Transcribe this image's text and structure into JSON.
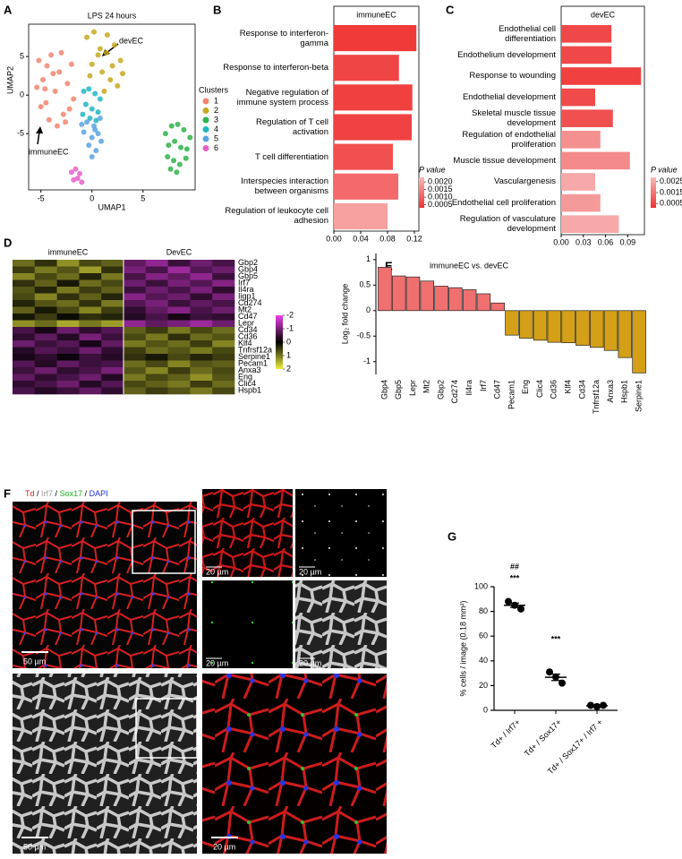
{
  "panel_labels": [
    "A",
    "B",
    "C",
    "D",
    "E",
    "F",
    "G"
  ],
  "chart_data": [
    {
      "type": "scatter",
      "title": "LPS 24 hours",
      "x_label": "UMAP1",
      "y_label": "UMAP2",
      "xlim": [
        -6.2,
        10.1
      ],
      "ylim": [
        -12.3,
        9.2
      ],
      "xticks": [
        -5,
        0,
        5
      ],
      "yticks": [
        5,
        0,
        -5
      ],
      "legend_title": "Clusters",
      "legend_position": "right",
      "annotations": [
        "devEC",
        "immuneEC"
      ],
      "series": [
        {
          "name": "1",
          "color": "#f4846f",
          "x": [
            -5.2,
            -4.8,
            -4.5,
            -4.0,
            -3.6,
            -3.2,
            -2.8,
            -2.4,
            -2.0,
            -5.0,
            -4.2,
            -3.4,
            -2.6,
            -1.8,
            -4.6,
            -3.8,
            -3.0,
            -2.2,
            -5.4,
            -4.4
          ],
          "y": [
            4.5,
            2.0,
            -1.0,
            5.2,
            0.5,
            3.0,
            -2.5,
            1.5,
            4.0,
            -1.5,
            -3.2,
            -4.0,
            -3.5,
            -0.5,
            0.8,
            2.8,
            5.5,
            -1.8,
            1.0,
            3.8
          ]
        },
        {
          "name": "2",
          "color": "#c8a820",
          "x": [
            -0.5,
            0.2,
            0.8,
            1.5,
            2.2,
            2.8,
            0.0,
            1.0,
            1.8,
            2.5,
            -0.2,
            0.6,
            1.4,
            2.0,
            3.0,
            1.2
          ],
          "y": [
            7.5,
            8.2,
            6.0,
            7.8,
            6.5,
            4.5,
            4.0,
            3.0,
            2.0,
            1.2,
            2.5,
            5.2,
            5.5,
            3.8,
            2.8,
            0.5
          ]
        },
        {
          "name": "3",
          "color": "#2fb34a",
          "x": [
            7.2,
            7.8,
            8.4,
            9.0,
            9.6,
            7.5,
            8.1,
            8.7,
            9.3,
            7.4,
            8.0,
            8.6,
            9.2,
            8.3,
            7.7
          ],
          "y": [
            -5.0,
            -4.0,
            -3.8,
            -4.5,
            -5.5,
            -6.5,
            -6.0,
            -6.8,
            -7.0,
            -8.0,
            -8.5,
            -9.0,
            -8.2,
            -10.0,
            -9.6
          ]
        },
        {
          "name": "4",
          "color": "#20b6c0",
          "x": [
            -0.8,
            -0.3,
            0.3,
            0.8,
            -0.6,
            0.0,
            0.6,
            -0.2,
            0.4,
            -0.9
          ],
          "y": [
            0.5,
            0.8,
            0.2,
            -0.5,
            -1.2,
            -1.8,
            -2.2,
            -3.0,
            -3.3,
            -2.5
          ]
        },
        {
          "name": "5",
          "color": "#5ba3e0",
          "x": [
            -0.5,
            0.2,
            0.8,
            -0.8,
            0.0,
            0.6,
            -0.3,
            0.4,
            0.0,
            0.9,
            -1.0,
            0.3
          ],
          "y": [
            -3.5,
            -4.0,
            -3.0,
            -4.8,
            -5.5,
            -5.0,
            -6.5,
            -7.2,
            -8.0,
            -6.0,
            -3.8,
            -4.5
          ]
        },
        {
          "name": "6",
          "color": "#e860c8",
          "x": [
            -2.0,
            -1.6,
            -1.2,
            -1.8,
            -1.4,
            -1.0
          ],
          "y": [
            -10.0,
            -9.6,
            -10.2,
            -11.0,
            -10.8,
            -11.3
          ]
        }
      ]
    },
    {
      "type": "barh",
      "title": "immuneEC",
      "categories": [
        "Response to interferon-gamma",
        "Response to interferon-beta",
        "Negative regulation of immune system process",
        "Regulation of T cell activation",
        "T cell differentiation",
        "Interspecies interaction between organisms",
        "Regulation of leukocyte cell adhesion"
      ],
      "values": [
        0.123,
        0.097,
        0.117,
        0.116,
        0.088,
        0.096,
        0.08
      ],
      "colors": [
        "#f03a3a",
        "#f04545",
        "#f04040",
        "#f04242",
        "#f25050",
        "#f46a6a",
        "#f6a0a0"
      ],
      "xlim": [
        0,
        0.1267
      ],
      "xticks": [
        {
          "value": 0,
          "label": "0.00"
        },
        0.04,
        0.08,
        0.12
      ],
      "colorbar": {
        "title": "P value",
        "clim": [
          0.0003,
          0.0023
        ],
        "colors": [
          "#f03030",
          "#f7b8b8"
        ],
        "ticks": [
          {
            "value": 0.002,
            "label": "0.0020"
          },
          0.0015,
          {
            "value": 0.001,
            "label": "0.0010"
          },
          0.0005
        ]
      }
    },
    {
      "type": "barh",
      "title": "devEC",
      "categories": [
        "Endothelial cell differentiation",
        "Endothelium development",
        "Response to wounding",
        "Endothelial development",
        "Skeletal muscle tissue development",
        "Regulation of endothelial proliferation",
        "Muscle tissue development",
        "Vasculargenesis",
        "Endothelial cell proliferation",
        "Regulation of vasculature development"
      ],
      "values": [
        0.068,
        0.068,
        0.108,
        0.046,
        0.07,
        0.053,
        0.093,
        0.046,
        0.053,
        0.078
      ],
      "colors": [
        "#f04848",
        "#f04848",
        "#f04040",
        "#f04a4a",
        "#f05050",
        "#f59090",
        "#f58a8a",
        "#f7a8a8",
        "#f59a9a",
        "#f7a8a8"
      ],
      "xlim": [
        0,
        0.1126
      ],
      "xticks": [
        {
          "value": 0,
          "label": "0.00"
        },
        0.03,
        0.06,
        0.09
      ],
      "colorbar": {
        "title": "P value",
        "clim": [
          0.0001,
          0.0029
        ],
        "colors": [
          "#f03030",
          "#f7b8b8"
        ],
        "ticks": [
          0.0025,
          0.0015,
          0.0005
        ]
      }
    },
    {
      "type": "heatmap",
      "rows": [
        "Gbp2",
        "Gbp4",
        "Gbp5",
        "Irf7",
        "Il4ra",
        "Iigp1",
        "Cd274",
        "Mt2",
        "Cd47",
        "Lepr",
        "Cd34",
        "Cd36",
        "Klf4",
        "Tnfrsf12a",
        "Serpine1",
        "Pecam1",
        "Anxa3",
        "Eng",
        "Clic4",
        "Hspb1"
      ],
      "groups": [
        {
          "name": "immuneEC",
          "values": [
            [
              0.9,
              0.4,
              1.2,
              0.6,
              0.8
            ],
            [
              0.5,
              1.0,
              0.7,
              1.3,
              0.4
            ],
            [
              1.1,
              0.6,
              0.9,
              0.3,
              1.0
            ],
            [
              0.4,
              0.8,
              0.2,
              0.9,
              0.6
            ],
            [
              0.7,
              0.3,
              1.0,
              0.5,
              0.8
            ],
            [
              0.6,
              1.1,
              0.4,
              0.8,
              0.3
            ],
            [
              0.3,
              0.7,
              0.9,
              0.4,
              1.0
            ],
            [
              0.8,
              0.2,
              0.6,
              1.1,
              0.5
            ],
            [
              0.2,
              0.5,
              0.1,
              0.4,
              0.3
            ],
            [
              1.2,
              0.9,
              1.4,
              1.0,
              1.3
            ],
            [
              -0.6,
              -0.2,
              -0.9,
              -0.4,
              -0.7
            ],
            [
              -0.4,
              -0.8,
              -0.3,
              -1.0,
              -0.5
            ],
            [
              -0.9,
              -0.5,
              -0.7,
              -0.2,
              -0.8
            ],
            [
              -0.3,
              -0.7,
              -0.5,
              -0.9,
              -0.4
            ],
            [
              -0.2,
              -0.4,
              -0.1,
              -0.5,
              -0.3
            ],
            [
              -0.7,
              -0.3,
              -0.8,
              -0.5,
              -0.6
            ],
            [
              -0.5,
              -0.9,
              -0.4,
              -0.6,
              -1.0
            ],
            [
              -0.8,
              -0.4,
              -0.6,
              -0.9,
              -0.3
            ],
            [
              -0.4,
              -0.6,
              -0.9,
              -0.3,
              -0.7
            ],
            [
              -0.6,
              -0.3,
              -0.5,
              -0.8,
              -0.4
            ]
          ]
        },
        {
          "name": "DevEC",
          "values": [
            [
              -0.8,
              -1.2,
              -0.5,
              -0.9,
              -0.6
            ],
            [
              -1.0,
              -0.6,
              -1.3,
              -0.7,
              -0.9
            ],
            [
              -0.6,
              -1.1,
              -0.8,
              -1.2,
              -0.5
            ],
            [
              -0.9,
              -0.5,
              -1.0,
              -0.7,
              -1.1
            ],
            [
              -0.5,
              -0.9,
              -0.6,
              -1.0,
              -0.4
            ],
            [
              -1.1,
              -0.7,
              -0.9,
              -0.4,
              -1.0
            ],
            [
              -0.7,
              -1.0,
              -0.5,
              -0.8,
              -0.6
            ],
            [
              -0.4,
              -0.8,
              -1.1,
              -0.6,
              -0.9
            ],
            [
              -0.3,
              -0.6,
              -0.2,
              -0.5,
              -0.4
            ],
            [
              -1.2,
              -0.8,
              -1.0,
              -1.3,
              -0.9
            ],
            [
              0.8,
              0.5,
              1.0,
              0.6,
              0.9
            ],
            [
              0.6,
              1.0,
              0.4,
              0.9,
              0.7
            ],
            [
              1.0,
              0.7,
              0.9,
              0.5,
              1.1
            ],
            [
              0.5,
              0.9,
              0.7,
              1.0,
              0.6
            ],
            [
              0.4,
              0.2,
              0.6,
              0.3,
              0.5
            ],
            [
              0.9,
              0.6,
              1.1,
              0.7,
              0.8
            ],
            [
              0.7,
              1.1,
              0.5,
              0.9,
              0.6
            ],
            [
              1.0,
              0.6,
              0.8,
              1.2,
              0.7
            ],
            [
              0.6,
              0.8,
              1.0,
              0.5,
              0.9
            ],
            [
              0.8,
              0.5,
              0.7,
              1.0,
              0.6
            ]
          ]
        }
      ],
      "colorbar": {
        "clim": [
          2,
          -2
        ],
        "colors": [
          "#f0f040",
          "#000000",
          "#f040f0"
        ],
        "ticks": [
          -2,
          -1,
          0,
          1,
          2
        ]
      }
    },
    {
      "type": "bar",
      "title": "immuneEC vs. devEC",
      "y_label": "Log₂ fold change",
      "categories": [
        "Gbp4",
        "Gbp5",
        "Lepr",
        "Mt2",
        "Gbp2",
        "Cd274",
        "Il4ra",
        "Irf7",
        "Cd47",
        "Pecam1",
        "Eng",
        "Clic4",
        "Cd36",
        "Klf4",
        "Cd34",
        "Tnfrsf12a",
        "Anxa3",
        "Hspb1",
        "Serpine1"
      ],
      "values": [
        0.85,
        0.68,
        0.66,
        0.58,
        0.48,
        0.45,
        0.41,
        0.33,
        0.15,
        -0.48,
        -0.54,
        -0.58,
        -0.62,
        -0.63,
        -0.68,
        -0.72,
        -0.78,
        -0.92,
        -1.22
      ],
      "colors": [
        "#f07070",
        "#f07070",
        "#f07070",
        "#f07070",
        "#f07070",
        "#f07070",
        "#f07070",
        "#f07070",
        "#f07070",
        "#d4a017",
        "#d4a017",
        "#d4a017",
        "#d4a017",
        "#d4a017",
        "#d4a017",
        "#d4a017",
        "#d4a017",
        "#d4a017",
        "#d4a017"
      ],
      "ylim": [
        -1.25,
        1.12
      ],
      "yticks": [
        1,
        0.5,
        0,
        -0.5,
        -1
      ]
    },
    {
      "type": "dot",
      "y_label": "% cells / image (0.18 mm²)",
      "categories": [
        "Td+ / Irf7+",
        "Td+ / Sox17+",
        "Td+ / Sox17+ / Irf7 +"
      ],
      "values": [
        [
          88,
          85,
          82
        ],
        [
          31,
          27,
          22
        ],
        [
          4,
          3,
          4
        ]
      ],
      "means": [
        85,
        26.7,
        3.7
      ],
      "errors": [
        1.8,
        2.6,
        0.3
      ],
      "color": "#000000",
      "ylim": [
        0,
        100
      ],
      "yticks": [
        0,
        20,
        40,
        60,
        80,
        100
      ],
      "annotations": [
        "##",
        "***",
        "***"
      ]
    }
  ],
  "panel_f": {
    "channels": [
      {
        "name": "Td",
        "color": "#e02020"
      },
      {
        "name": "Irf7",
        "color": "#999999"
      },
      {
        "name": "Sox17",
        "color": "#20b020"
      },
      {
        "name": "DAPI",
        "color": "#2030e0"
      }
    ],
    "separator": " / ",
    "scale_bars": [
      "50 µm",
      "20 µm",
      "20 µm",
      "20 µm",
      "20 µm",
      "50 µm",
      "20 µm"
    ]
  }
}
